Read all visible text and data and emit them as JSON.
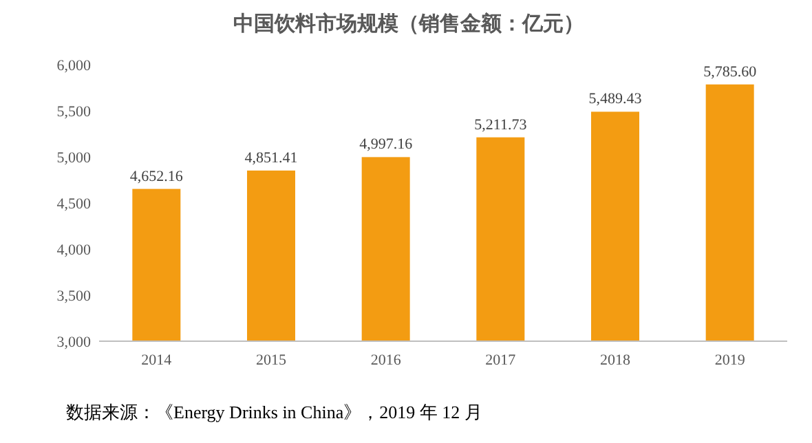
{
  "chart_data": {
    "type": "bar",
    "title": "中国饮料市场规模（销售金额：亿元）",
    "categories": [
      "2014",
      "2015",
      "2016",
      "2017",
      "2018",
      "2019"
    ],
    "values": [
      4652.16,
      4851.41,
      4997.16,
      5211.73,
      5489.43,
      5785.6
    ],
    "value_labels": [
      "4,652.16",
      "4,851.41",
      "4,997.16",
      "5,211.73",
      "5,489.43",
      "5,785.60"
    ],
    "color": "#f39c12",
    "ylim": [
      3000,
      6000
    ],
    "yticks": [
      {
        "value": 3000,
        "label": "3,000"
      },
      {
        "value": 3500,
        "label": "3,500"
      },
      {
        "value": 4000,
        "label": "4,000"
      },
      {
        "value": 4500,
        "label": "4,500"
      },
      {
        "value": 5000,
        "label": "5,000"
      },
      {
        "value": 5500,
        "label": "5,500"
      },
      {
        "value": 6000,
        "label": "6,000"
      }
    ],
    "grid": false,
    "annotations": [
      "数据来源：《Energy Drinks in China》，2019 年 12 月"
    ]
  }
}
